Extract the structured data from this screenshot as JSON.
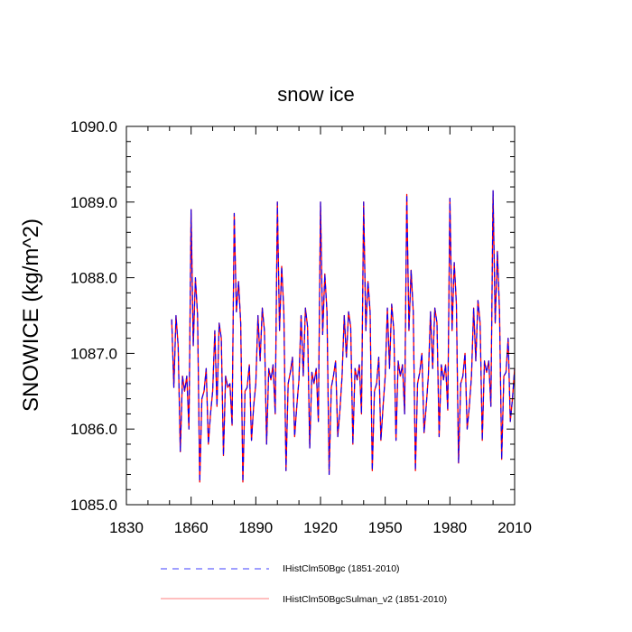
{
  "chart_data": {
    "type": "line",
    "title": "snow ice",
    "xlabel": "",
    "ylabel": "SNOWICE  (kg/m^2)",
    "xlim": [
      1830,
      2010
    ],
    "ylim": [
      1085.0,
      1090.0
    ],
    "xticks": [
      1830,
      1860,
      1890,
      1920,
      1950,
      1980,
      2010
    ],
    "xtick_labels": [
      "1830",
      "1860",
      "1890",
      "1920",
      "1950",
      "1980",
      "2010"
    ],
    "yticks": [
      1085.0,
      1086.0,
      1087.0,
      1088.0,
      1089.0,
      1090.0
    ],
    "ytick_labels": [
      "1085.0",
      "1086.0",
      "1087.0",
      "1088.0",
      "1089.0",
      "1090.0"
    ],
    "grid": false,
    "legend_position": "bottom",
    "x": [
      1851,
      1852,
      1853,
      1854,
      1855,
      1856,
      1857,
      1858,
      1859,
      1860,
      1861,
      1862,
      1863,
      1864,
      1865,
      1866,
      1867,
      1868,
      1869,
      1870,
      1871,
      1872,
      1873,
      1874,
      1875,
      1876,
      1877,
      1878,
      1879,
      1880,
      1881,
      1882,
      1883,
      1884,
      1885,
      1886,
      1887,
      1888,
      1889,
      1890,
      1891,
      1892,
      1893,
      1894,
      1895,
      1896,
      1897,
      1898,
      1899,
      1900,
      1901,
      1902,
      1903,
      1904,
      1905,
      1906,
      1907,
      1908,
      1909,
      1910,
      1911,
      1912,
      1913,
      1914,
      1915,
      1916,
      1917,
      1918,
      1919,
      1920,
      1921,
      1922,
      1923,
      1924,
      1925,
      1926,
      1927,
      1928,
      1929,
      1930,
      1931,
      1932,
      1933,
      1934,
      1935,
      1936,
      1937,
      1938,
      1939,
      1940,
      1941,
      1942,
      1943,
      1944,
      1945,
      1946,
      1947,
      1948,
      1949,
      1950,
      1951,
      1952,
      1953,
      1954,
      1955,
      1956,
      1957,
      1958,
      1959,
      1960,
      1961,
      1962,
      1963,
      1964,
      1965,
      1966,
      1967,
      1968,
      1969,
      1970,
      1971,
      1972,
      1973,
      1974,
      1975,
      1976,
      1977,
      1978,
      1979,
      1980,
      1981,
      1982,
      1983,
      1984,
      1985,
      1986,
      1987,
      1988,
      1989,
      1990,
      1991,
      1992,
      1993,
      1994,
      1995,
      1996,
      1997,
      1998,
      1999,
      2000,
      2001,
      2002,
      2003,
      2004,
      2005,
      2006,
      2007,
      2008,
      2009,
      2010
    ],
    "series": [
      {
        "name": "IHistClm50Bgc (1851-2010)",
        "color": "#0000ff",
        "dash": "dashed",
        "values": [
          1087.45,
          1086.55,
          1087.5,
          1087.1,
          1085.7,
          1086.7,
          1086.5,
          1086.7,
          1086.0,
          1088.9,
          1087.1,
          1088.0,
          1087.5,
          1085.3,
          1086.4,
          1086.5,
          1086.8,
          1085.8,
          1086.2,
          1086.5,
          1087.3,
          1086.3,
          1087.4,
          1087.2,
          1085.65,
          1086.7,
          1086.55,
          1086.6,
          1086.05,
          1088.85,
          1087.55,
          1087.95,
          1087.4,
          1085.3,
          1086.5,
          1086.55,
          1086.85,
          1085.85,
          1086.3,
          1086.6,
          1087.5,
          1086.9,
          1087.6,
          1087.3,
          1085.8,
          1086.8,
          1086.65,
          1086.85,
          1086.2,
          1089.0,
          1087.3,
          1088.15,
          1087.55,
          1085.45,
          1086.6,
          1086.75,
          1086.95,
          1085.9,
          1086.3,
          1086.65,
          1087.5,
          1086.7,
          1087.6,
          1087.35,
          1085.75,
          1086.75,
          1086.6,
          1086.8,
          1086.1,
          1089.0,
          1087.25,
          1088.05,
          1087.55,
          1085.4,
          1086.55,
          1086.7,
          1086.9,
          1085.9,
          1086.25,
          1086.7,
          1087.5,
          1086.95,
          1087.55,
          1087.35,
          1085.8,
          1086.8,
          1086.65,
          1086.85,
          1086.2,
          1089.0,
          1087.3,
          1087.95,
          1087.55,
          1085.45,
          1086.5,
          1086.6,
          1086.95,
          1085.85,
          1086.3,
          1086.7,
          1087.6,
          1086.8,
          1087.65,
          1087.3,
          1085.85,
          1086.9,
          1086.7,
          1086.85,
          1086.2,
          1089.1,
          1087.3,
          1088.1,
          1087.55,
          1085.45,
          1086.6,
          1086.75,
          1087.0,
          1085.95,
          1086.3,
          1086.7,
          1087.55,
          1086.8,
          1087.6,
          1087.4,
          1085.9,
          1086.85,
          1086.65,
          1086.85,
          1086.25,
          1089.05,
          1087.3,
          1088.2,
          1087.65,
          1085.55,
          1086.6,
          1086.7,
          1087.0,
          1086.0,
          1086.3,
          1086.7,
          1087.6,
          1086.9,
          1087.7,
          1087.4,
          1085.85,
          1086.9,
          1086.75,
          1086.9,
          1086.3,
          1089.15,
          1087.4,
          1088.35,
          1087.55,
          1085.6,
          1086.7,
          1086.75,
          1087.2,
          1086.1,
          1086.4,
          1086.8
        ]
      },
      {
        "name": "IHistClm50BgcSulman_v2 (1851-2010)",
        "color": "#ff0000",
        "dash": "solid",
        "values": [
          1087.45,
          1086.55,
          1087.5,
          1087.1,
          1085.7,
          1086.7,
          1086.5,
          1086.7,
          1086.0,
          1088.9,
          1087.1,
          1088.0,
          1087.5,
          1085.3,
          1086.4,
          1086.5,
          1086.8,
          1085.8,
          1086.2,
          1086.5,
          1087.3,
          1086.3,
          1087.4,
          1087.2,
          1085.65,
          1086.7,
          1086.55,
          1086.6,
          1086.05,
          1088.85,
          1087.55,
          1087.95,
          1087.4,
          1085.3,
          1086.5,
          1086.55,
          1086.85,
          1085.85,
          1086.3,
          1086.6,
          1087.5,
          1086.9,
          1087.6,
          1087.3,
          1085.8,
          1086.8,
          1086.65,
          1086.85,
          1086.2,
          1089.0,
          1087.3,
          1088.15,
          1087.55,
          1085.45,
          1086.6,
          1086.75,
          1086.95,
          1085.9,
          1086.3,
          1086.65,
          1087.5,
          1086.7,
          1087.6,
          1087.35,
          1085.75,
          1086.75,
          1086.6,
          1086.8,
          1086.1,
          1089.0,
          1087.25,
          1088.05,
          1087.55,
          1085.4,
          1086.55,
          1086.7,
          1086.9,
          1085.9,
          1086.25,
          1086.7,
          1087.5,
          1086.95,
          1087.55,
          1087.35,
          1085.8,
          1086.8,
          1086.65,
          1086.85,
          1086.2,
          1089.0,
          1087.3,
          1087.95,
          1087.55,
          1085.45,
          1086.5,
          1086.6,
          1086.95,
          1085.85,
          1086.3,
          1086.7,
          1087.6,
          1086.8,
          1087.65,
          1087.3,
          1085.85,
          1086.9,
          1086.7,
          1086.85,
          1086.2,
          1089.1,
          1087.3,
          1088.1,
          1087.55,
          1085.45,
          1086.6,
          1086.75,
          1087.0,
          1085.95,
          1086.3,
          1086.7,
          1087.55,
          1086.8,
          1087.6,
          1087.4,
          1085.9,
          1086.85,
          1086.65,
          1086.85,
          1086.25,
          1089.05,
          1087.3,
          1088.2,
          1087.65,
          1085.55,
          1086.6,
          1086.7,
          1087.0,
          1086.0,
          1086.3,
          1086.7,
          1087.6,
          1086.9,
          1087.7,
          1087.4,
          1085.85,
          1086.9,
          1086.75,
          1086.9,
          1086.3,
          1089.15,
          1087.4,
          1088.35,
          1087.55,
          1085.6,
          1086.7,
          1086.75,
          1087.2,
          1086.1,
          1086.4,
          1086.8
        ]
      }
    ]
  }
}
